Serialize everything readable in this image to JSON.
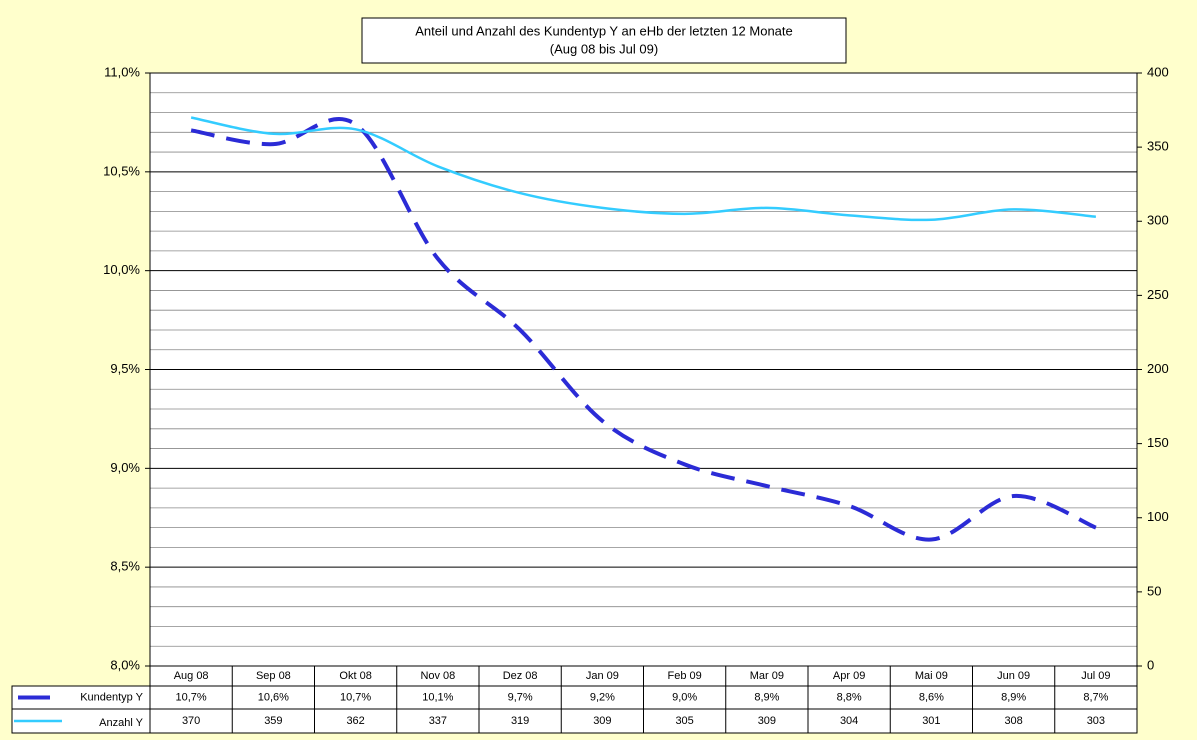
{
  "chart_data": {
    "type": "line",
    "title": "Anteil und Anzahl des Kundentyp Y an eHb der letzten 12 Monate",
    "subtitle": "(Aug 08 bis Jul 09)",
    "categories": [
      "Aug 08",
      "Sep 08",
      "Okt 08",
      "Nov 08",
      "Dez 08",
      "Jan 09",
      "Feb 09",
      "Mar 09",
      "Apr 09",
      "Mai 09",
      "Jun 09",
      "Jul 09"
    ],
    "series": [
      {
        "name": "Kundentyp Y",
        "color": "#2b2bd6",
        "dashed": true,
        "axis": "y",
        "values": [
          10.71,
          10.64,
          10.74,
          10.06,
          9.7,
          9.24,
          9.02,
          8.91,
          8.81,
          8.64,
          8.86,
          8.7
        ],
        "value_labels": [
          "10,7%",
          "10,6%",
          "10,7%",
          "10,1%",
          "9,7%",
          "9,2%",
          "9,0%",
          "8,9%",
          "8,8%",
          "8,6%",
          "8,9%",
          "8,7%"
        ]
      },
      {
        "name": "Anzahl Y",
        "color": "#33ccff",
        "dashed": false,
        "axis": "y2",
        "values": [
          370,
          359,
          362,
          337,
          319,
          309,
          305,
          309,
          304,
          301,
          308,
          303
        ]
      }
    ],
    "ylim": [
      8,
      11
    ],
    "yticks": [
      {
        "value": 8,
        "label": "8,0%"
      },
      {
        "value": 8.5,
        "label": "8,5%"
      },
      {
        "value": 9,
        "label": "9,0%"
      },
      {
        "value": 9.5,
        "label": "9,5%"
      },
      {
        "value": 10,
        "label": "10,0%"
      },
      {
        "value": 10.5,
        "label": "10,5%"
      },
      {
        "value": 11,
        "label": "11,0%"
      }
    ],
    "minor_yticks": [
      8.1,
      8.2,
      8.3,
      8.4,
      8.6,
      8.7,
      8.8,
      8.9,
      9.1,
      9.2,
      9.3,
      9.4,
      9.6,
      9.7,
      9.8,
      9.9,
      10.1,
      10.2,
      10.3,
      10.4,
      10.6,
      10.7,
      10.8,
      10.9
    ],
    "y2lim": [
      0,
      400
    ],
    "y2ticks": [
      0,
      50,
      100,
      150,
      200,
      250,
      300,
      350,
      400
    ],
    "grid": true,
    "data_table": true
  }
}
